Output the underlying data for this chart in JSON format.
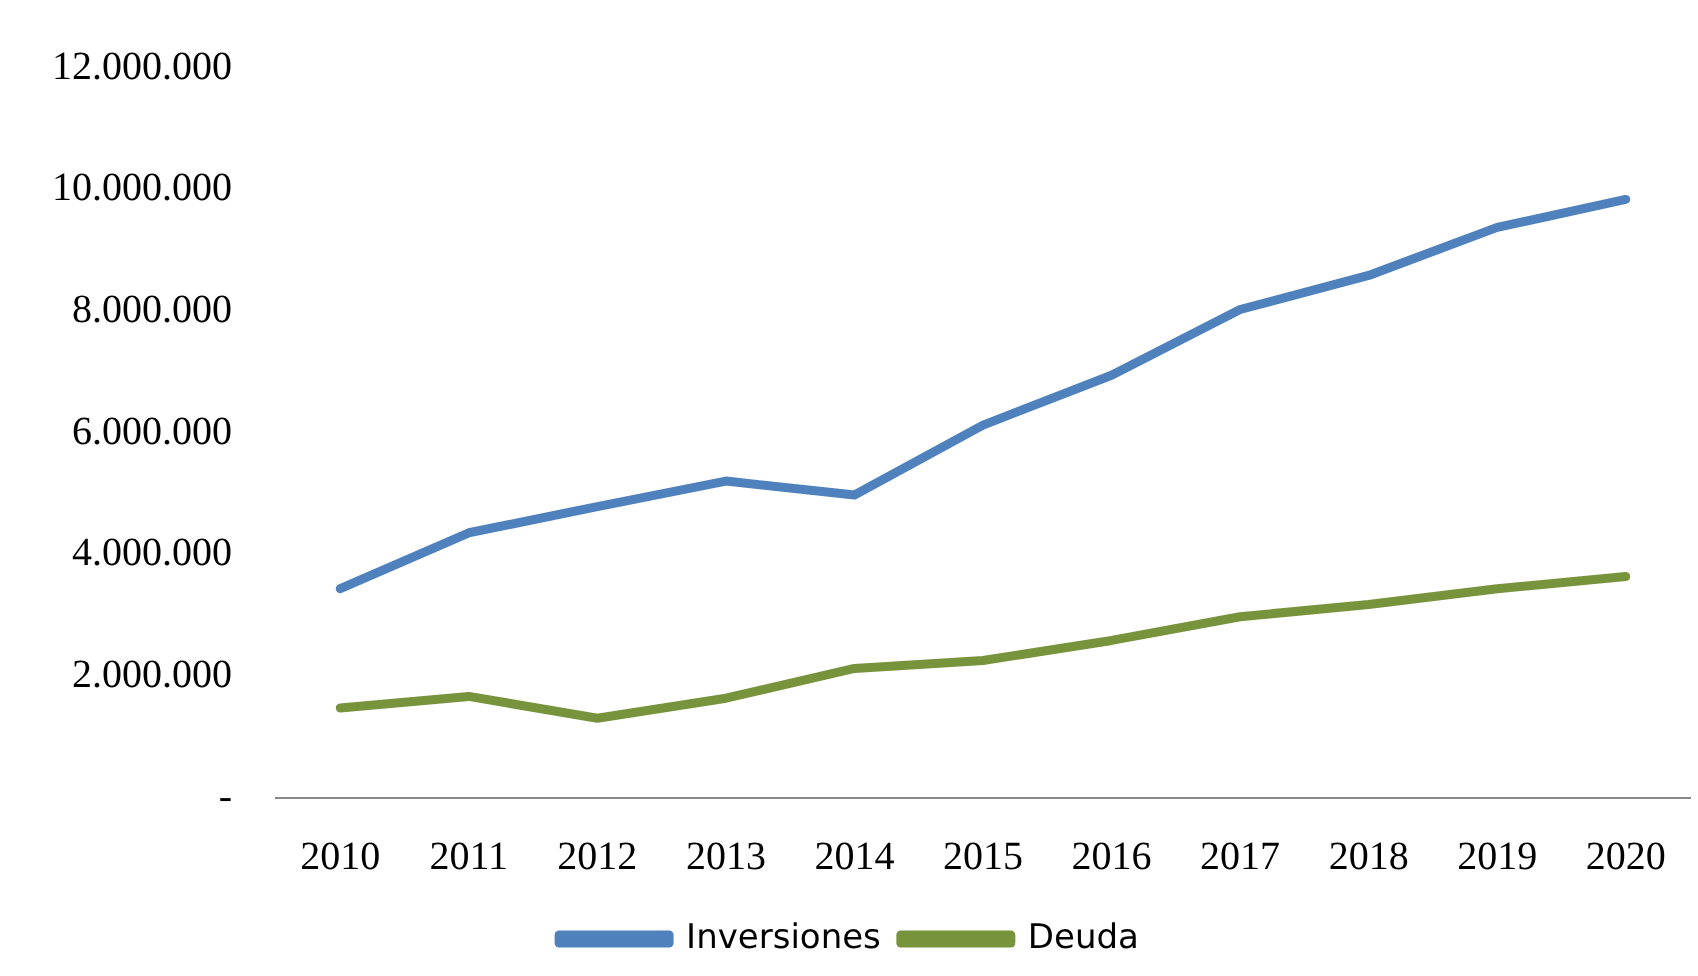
{
  "chart_data": {
    "type": "line",
    "categories": [
      "2010",
      "2011",
      "2012",
      "2013",
      "2014",
      "2015",
      "2016",
      "2017",
      "2018",
      "2019",
      "2020"
    ],
    "series": [
      {
        "name": "Inversiones",
        "color": "#4f81bd",
        "values": [
          3440000,
          4360000,
          4790000,
          5210000,
          4980000,
          6130000,
          6950000,
          8030000,
          8590000,
          9380000,
          9840000
        ]
      },
      {
        "name": "Deuda",
        "color": "#77933c",
        "values": [
          1480000,
          1670000,
          1310000,
          1640000,
          2130000,
          2260000,
          2590000,
          2980000,
          3180000,
          3440000,
          3640000
        ]
      }
    ],
    "ylim": [
      0,
      12000000
    ],
    "yticks": [
      {
        "value": 0,
        "label": "-"
      },
      {
        "value": 2000000,
        "label": "2.000.000"
      },
      {
        "value": 4000000,
        "label": "4.000.000"
      },
      {
        "value": 6000000,
        "label": "6.000.000"
      },
      {
        "value": 8000000,
        "label": "8.000.000"
      },
      {
        "value": 10000000,
        "label": "10.000.000"
      },
      {
        "value": 12000000,
        "label": "12.000.000"
      }
    ],
    "grid": false,
    "legend": "bottom",
    "marker": "none",
    "line_style": "solid"
  }
}
